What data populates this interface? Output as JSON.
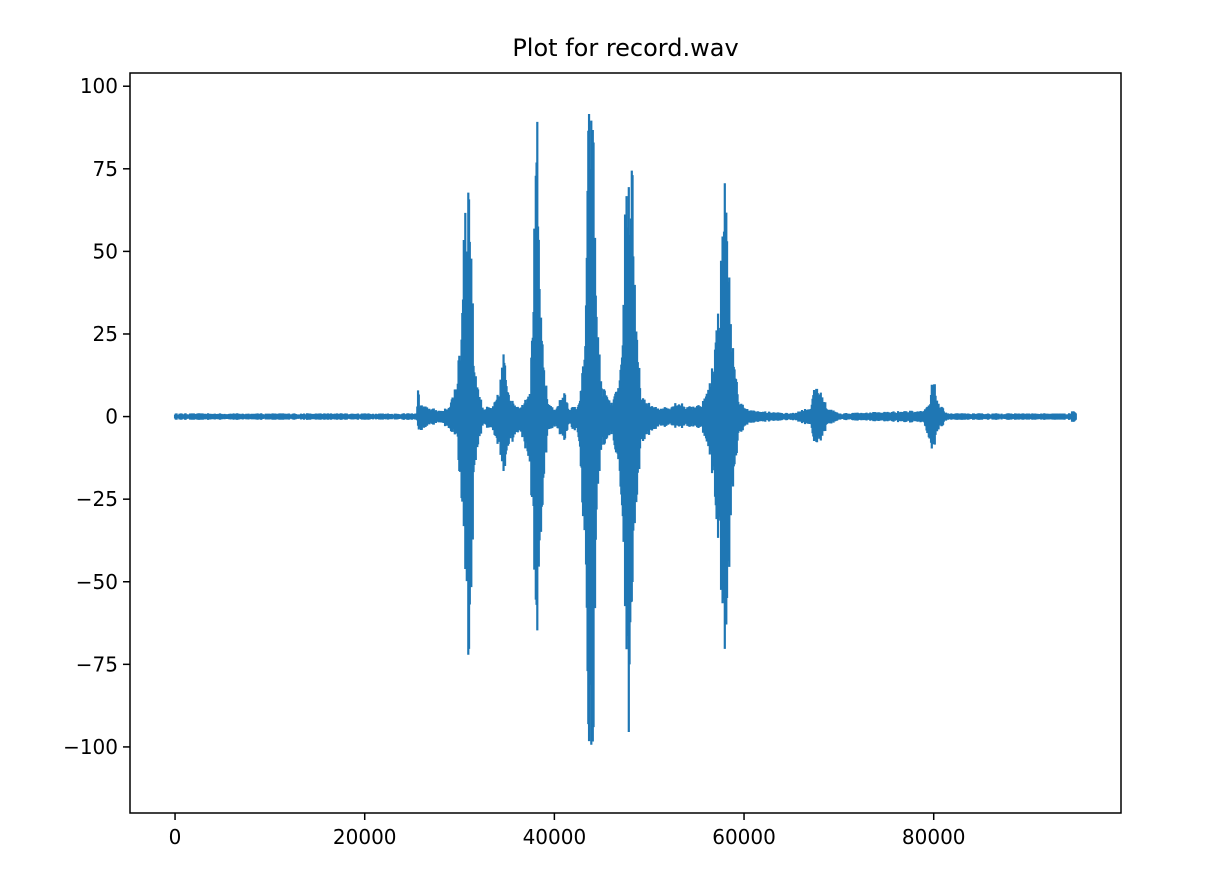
{
  "chart_data": {
    "type": "line",
    "title": "Plot for record.wav",
    "xlabel": "",
    "ylabel": "",
    "xlim": [
      -4750,
      99750
    ],
    "ylim": [
      -120,
      104
    ],
    "x_ticks": [
      0,
      20000,
      40000,
      60000,
      80000
    ],
    "x_tick_labels": [
      "0",
      "20000",
      "40000",
      "60000",
      "80000"
    ],
    "y_ticks": [
      100,
      75,
      50,
      25,
      0,
      -25,
      -50,
      -75,
      -100
    ],
    "y_tick_labels": [
      "100",
      "75",
      "50",
      "25",
      "0",
      "−25",
      "−50",
      "−75",
      "−100"
    ],
    "grid": false,
    "legend": null,
    "series": [
      {
        "color": "#1f77b4",
        "x_start": 0,
        "x_end": 95000,
        "envelope": [
          [
            0,
            1,
            -1
          ],
          [
            10000,
            1,
            -1
          ],
          [
            25500,
            1,
            -1
          ],
          [
            25600,
            10,
            -3
          ],
          [
            25800,
            4,
            -5
          ],
          [
            26500,
            3,
            -3
          ],
          [
            28000,
            2,
            -2
          ],
          [
            29000,
            3,
            -4
          ],
          [
            29800,
            14,
            -8
          ],
          [
            30200,
            27,
            -30
          ],
          [
            30500,
            77,
            -45
          ],
          [
            30800,
            75,
            -79
          ],
          [
            31100,
            78,
            -84
          ],
          [
            31500,
            20,
            -22
          ],
          [
            32000,
            8,
            -8
          ],
          [
            32500,
            3,
            -3
          ],
          [
            33500,
            3,
            -4
          ],
          [
            34200,
            8,
            -10
          ],
          [
            34600,
            21,
            -18
          ],
          [
            35000,
            12,
            -14
          ],
          [
            35500,
            5,
            -8
          ],
          [
            36500,
            3,
            -5
          ],
          [
            37500,
            10,
            -20
          ],
          [
            37800,
            49,
            -42
          ],
          [
            38200,
            91,
            -66
          ],
          [
            38500,
            35,
            -40
          ],
          [
            38800,
            20,
            -25
          ],
          [
            39300,
            5,
            -5
          ],
          [
            40000,
            2,
            -3
          ],
          [
            41000,
            8,
            -8
          ],
          [
            41500,
            3,
            -3
          ],
          [
            42500,
            3,
            -5
          ],
          [
            43200,
            20,
            -40
          ],
          [
            43600,
            94,
            -100
          ],
          [
            44100,
            92,
            -105
          ],
          [
            44500,
            30,
            -25
          ],
          [
            45000,
            10,
            -10
          ],
          [
            46000,
            4,
            -5
          ],
          [
            46800,
            10,
            -15
          ],
          [
            47200,
            20,
            -30
          ],
          [
            47500,
            79,
            -72
          ],
          [
            47900,
            76,
            -110
          ],
          [
            48200,
            92,
            -62
          ],
          [
            48600,
            28,
            -28
          ],
          [
            49200,
            6,
            -8
          ],
          [
            50500,
            3,
            -4
          ],
          [
            52000,
            3,
            -3
          ],
          [
            53000,
            5,
            -4
          ],
          [
            54000,
            3,
            -3
          ],
          [
            55500,
            4,
            -4
          ],
          [
            56300,
            9,
            -10
          ],
          [
            57000,
            25,
            -30
          ],
          [
            57500,
            42,
            -49
          ],
          [
            57900,
            79,
            -78
          ],
          [
            58400,
            48,
            -52
          ],
          [
            58900,
            18,
            -18
          ],
          [
            59500,
            5,
            -6
          ],
          [
            60500,
            2,
            -2
          ],
          [
            65000,
            1,
            -1
          ],
          [
            67000,
            3,
            -3
          ],
          [
            67600,
            11,
            -10
          ],
          [
            68000,
            8,
            -8
          ],
          [
            68800,
            3,
            -3
          ],
          [
            70000,
            1,
            -1
          ],
          [
            79000,
            2,
            -2
          ],
          [
            79600,
            4,
            -8
          ],
          [
            79900,
            13,
            -11
          ],
          [
            80500,
            4,
            -4
          ],
          [
            81500,
            1,
            -1
          ],
          [
            94500,
            1,
            -1
          ],
          [
            94600,
            2,
            -2
          ],
          [
            95000,
            1,
            -1
          ]
        ]
      }
    ]
  }
}
